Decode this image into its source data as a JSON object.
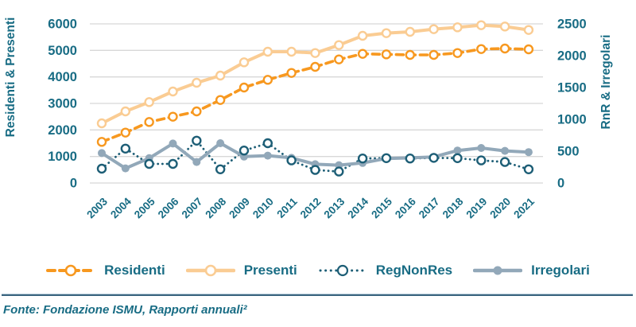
{
  "chart_data": {
    "type": "line",
    "title": "",
    "x": [
      2003,
      2004,
      2005,
      2006,
      2007,
      2008,
      2009,
      2010,
      2011,
      2012,
      2013,
      2014,
      2015,
      2016,
      2017,
      2018,
      2019,
      2020,
      2021
    ],
    "left_axis": {
      "label": "Residenti & Presenti",
      "min": 0,
      "max": 6000,
      "step": 1000,
      "ticks": [
        0,
        1000,
        2000,
        3000,
        4000,
        5000,
        6000
      ]
    },
    "right_axis": {
      "label": "RnR & Irregolari",
      "min": 0,
      "max": 2500,
      "step": 500,
      "ticks": [
        0,
        500,
        1000,
        1500,
        2000,
        2500
      ]
    },
    "grid": "horizontal-only",
    "legend_position": "bottom",
    "series": [
      {
        "name": "Residenti",
        "axis": "left",
        "style": "dashed",
        "marker": "open",
        "color": "#F7981F",
        "values": [
          1550,
          1900,
          2300,
          2500,
          2700,
          3130,
          3600,
          3890,
          4150,
          4380,
          4660,
          4870,
          4850,
          4830,
          4830,
          4900,
          5050,
          5070,
          5040
        ]
      },
      {
        "name": "Presenti",
        "axis": "left",
        "style": "solid",
        "marker": "open",
        "color": "#FACC93",
        "values": [
          2250,
          2700,
          3050,
          3450,
          3780,
          4050,
          4550,
          4950,
          4950,
          4900,
          5200,
          5550,
          5650,
          5700,
          5800,
          5870,
          5950,
          5900,
          5770
        ]
      },
      {
        "name": "RegNonRes",
        "axis": "right",
        "style": "dotted",
        "marker": "open",
        "color": "#1D5E76",
        "values": [
          225,
          540,
          300,
          300,
          665,
          215,
          510,
          625,
          355,
          205,
          180,
          385,
          390,
          385,
          395,
          390,
          355,
          330,
          215
        ]
      },
      {
        "name": "Irregolari",
        "axis": "right",
        "style": "solid",
        "marker": "filled",
        "color": "#92A8B9",
        "values": [
          470,
          230,
          390,
          620,
          330,
          625,
          415,
          430,
          395,
          295,
          280,
          315,
          385,
          395,
          410,
          510,
          550,
          505,
          485
        ]
      }
    ]
  },
  "colors": {
    "text": "#186C84",
    "gridline": "#D8D8D8",
    "divider": "#3A647E",
    "background": "#FFFFFF"
  },
  "footer": {
    "source": "Fonte: Fondazione ISMU, Rapporti annuali²"
  }
}
